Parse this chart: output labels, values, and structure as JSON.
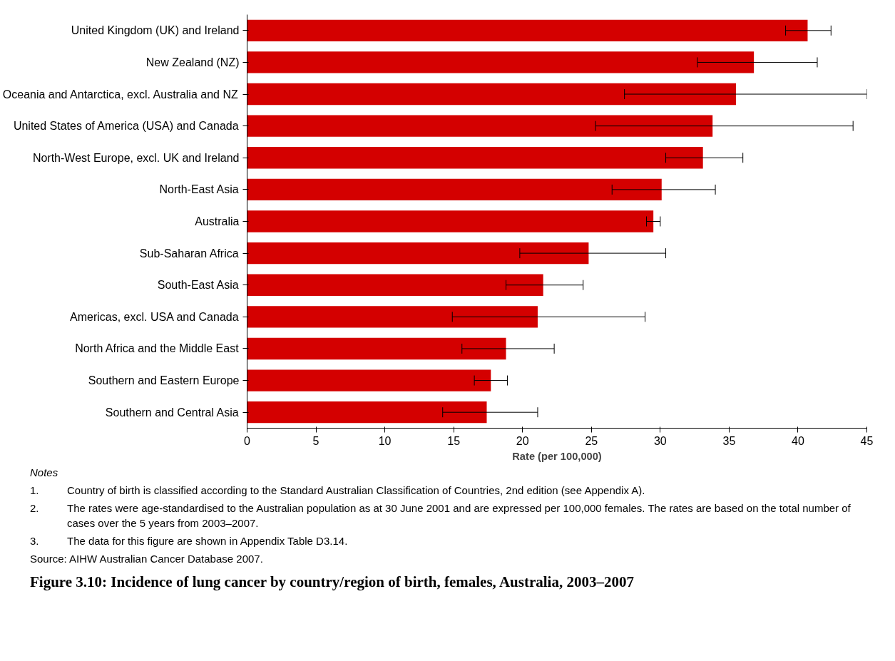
{
  "chart_data": {
    "type": "bar",
    "orientation": "horizontal",
    "title": "Figure 3.10: Incidence of lung cancer by country/region of birth, females, Australia, 2003–2007",
    "xlabel": "Rate (per 100,000)",
    "categories": [
      "United Kingdom (UK) and Ireland",
      "New Zealand (NZ)",
      "Oceania and Antarctica, excl. Australia and NZ",
      "United States of America (USA) and Canada",
      "North-West Europe, excl. UK and Ireland",
      "North-East Asia",
      "Australia",
      "Sub-Saharan Africa",
      "South-East Asia",
      "Americas, excl. USA and Canada",
      "North Africa and the Middle East",
      "Southern and Eastern Europe",
      "Southern and Central Asia"
    ],
    "values": [
      40.7,
      36.8,
      35.5,
      33.8,
      33.1,
      30.1,
      29.5,
      24.8,
      21.5,
      21.1,
      18.8,
      17.7,
      17.4
    ],
    "errors": [
      [
        39.1,
        42.4
      ],
      [
        32.7,
        41.4
      ],
      [
        27.4,
        45.0
      ],
      [
        25.3,
        44.0
      ],
      [
        30.4,
        36.0
      ],
      [
        26.5,
        34.0
      ],
      [
        29.0,
        30.0
      ],
      [
        19.8,
        30.4
      ],
      [
        18.8,
        24.4
      ],
      [
        14.9,
        28.9
      ],
      [
        15.6,
        22.3
      ],
      [
        16.5,
        18.9
      ],
      [
        14.2,
        21.1
      ]
    ],
    "color": "#d40000",
    "xlim": [
      0,
      45
    ],
    "xticks": [
      0,
      5,
      10,
      15,
      20,
      25,
      30,
      35,
      40,
      45
    ],
    "grid": false,
    "annotations": [
      "Notes",
      "1.\tCountry of birth is classified according to the Standard Australian Classification of Countries, 2nd edition (see Appendix A).",
      "2.\tThe rates were age-standardised to the Australian population as at 30 June 2001 and are expressed per 100,000 females. The rates are based on the total number of cases over the 5 years from 2003–2007.",
      "3.\tThe data for this figure are shown in Appendix Table D3.14.",
      "Source: AIHW Australian Cancer Database 2007."
    ]
  }
}
